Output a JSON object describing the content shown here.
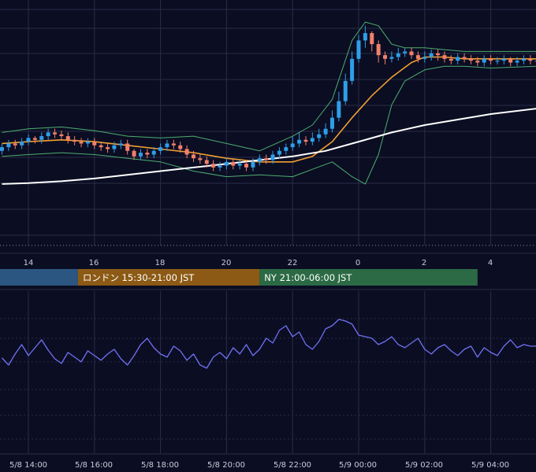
{
  "theme": {
    "background": "#0b0d23",
    "grid": "#2a2d45",
    "candle_up": "#2f9ee8",
    "candle_down": "#f2806a",
    "ma_short": "#f0a030",
    "ma_long": "#ffffff",
    "bollinger": "#4caf6e",
    "oscillator": "#6f72f2"
  },
  "sessions": [
    {
      "label": "",
      "color": "#2b5682",
      "start_hour": 11.2,
      "end_hour": 15.5
    },
    {
      "label": "ロンドン 15:30-21:00 JST",
      "color": "#8c5a14",
      "start_hour": 15.5,
      "end_hour": 21.0
    },
    {
      "label": "NY 21:00-06:00 JST",
      "color": "#2b6a44",
      "start_hour": 21.0,
      "end_hour": 27.6
    }
  ],
  "hour_ticks": [
    "14",
    "16",
    "18",
    "20",
    "22",
    "0",
    "2",
    "4"
  ],
  "date_ticks": [
    "5/8 14:00",
    "5/8 16:00",
    "5/8 18:00",
    "5/8 20:00",
    "5/8 22:00",
    "5/9 00:00",
    "5/9 02:00",
    "5/9 04:00"
  ],
  "chart_data": [
    {
      "type": "candlestick",
      "x_axis": "time (hours, 5/8 → 5/9)",
      "xlim": [
        13.2,
        29.4
      ],
      "ylim": [
        0,
        100
      ],
      "grid": true,
      "series": [
        {
          "kind": "candles",
          "x": [
            13.2,
            13.4,
            13.6,
            13.8,
            14.0,
            14.2,
            14.4,
            14.6,
            14.8,
            15.0,
            15.2,
            15.4,
            15.6,
            15.8,
            16.0,
            16.2,
            16.4,
            16.6,
            16.8,
            17.0,
            17.2,
            17.4,
            17.6,
            17.8,
            18.0,
            18.2,
            18.4,
            18.6,
            18.8,
            19.0,
            19.2,
            19.4,
            19.6,
            19.8,
            20.0,
            20.2,
            20.4,
            20.6,
            20.8,
            21.0,
            21.2,
            21.4,
            21.6,
            21.8,
            22.0,
            22.2,
            22.4,
            22.6,
            22.8,
            23.0,
            23.2,
            23.4,
            23.6,
            23.8,
            24.0,
            24.2,
            24.4,
            24.6,
            24.8,
            25.0,
            25.2,
            25.4,
            25.6,
            25.8,
            26.0,
            26.2,
            26.4,
            26.6,
            26.8,
            27.0,
            27.2,
            27.4,
            27.6,
            27.8,
            28.0,
            28.2,
            28.4,
            28.6,
            28.8,
            29.0,
            29.2,
            29.4
          ],
          "close": [
            32,
            34,
            33,
            35,
            37,
            36,
            38,
            40,
            39,
            38,
            36,
            35,
            34,
            35,
            33,
            32,
            31,
            33,
            34,
            30,
            27,
            29,
            28,
            30,
            32,
            34,
            33,
            31,
            28,
            26,
            25,
            23,
            21,
            22,
            24,
            22,
            23,
            21,
            24,
            26,
            25,
            28,
            30,
            32,
            34,
            36,
            35,
            37,
            39,
            42,
            48,
            57,
            68,
            80,
            90,
            94,
            88,
            82,
            80,
            81,
            83,
            84,
            82,
            80,
            81,
            83,
            82,
            80,
            79,
            81,
            80,
            79,
            78,
            80,
            79,
            79,
            80,
            78,
            79,
            80,
            79,
            79
          ],
          "open": [
            30,
            32,
            34,
            33,
            35,
            37,
            36,
            38,
            40,
            39,
            38,
            36,
            35,
            34,
            35,
            33,
            32,
            31,
            33,
            34,
            30,
            27,
            29,
            28,
            30,
            32,
            34,
            33,
            31,
            28,
            26,
            25,
            23,
            21,
            22,
            24,
            22,
            23,
            21,
            24,
            26,
            25,
            28,
            30,
            32,
            34,
            36,
            35,
            37,
            39,
            42,
            48,
            57,
            68,
            80,
            90,
            94,
            88,
            82,
            80,
            81,
            83,
            84,
            82,
            80,
            81,
            83,
            82,
            80,
            79,
            81,
            80,
            79,
            78,
            80,
            79,
            79,
            80,
            78,
            79,
            80,
            79
          ],
          "high": [
            34,
            36,
            36,
            37,
            39,
            38,
            40,
            42,
            42,
            41,
            40,
            38,
            37,
            37,
            37,
            35,
            34,
            35,
            36,
            36,
            31,
            31,
            31,
            32,
            34,
            36,
            36,
            35,
            33,
            30,
            28,
            27,
            25,
            24,
            26,
            26,
            25,
            25,
            26,
            28,
            28,
            30,
            32,
            34,
            38,
            40,
            38,
            40,
            42,
            45,
            52,
            62,
            72,
            84,
            93,
            98,
            95,
            90,
            84,
            84,
            86,
            86,
            86,
            84,
            84,
            85,
            85,
            84,
            82,
            83,
            83,
            82,
            81,
            82,
            82,
            81,
            82,
            81,
            81,
            82,
            82,
            81
          ],
          "low": [
            28,
            30,
            31,
            31,
            33,
            34,
            34,
            36,
            37,
            36,
            34,
            33,
            32,
            32,
            31,
            30,
            29,
            29,
            31,
            28,
            25,
            25,
            26,
            26,
            28,
            30,
            31,
            29,
            26,
            24,
            23,
            21,
            19,
            19,
            20,
            20,
            20,
            19,
            19,
            22,
            23,
            23,
            26,
            28,
            30,
            32,
            33,
            33,
            35,
            37,
            40,
            46,
            55,
            66,
            78,
            86,
            84,
            78,
            77,
            78,
            79,
            81,
            80,
            78,
            78,
            79,
            79,
            78,
            77,
            77,
            78,
            77,
            76,
            76,
            77,
            77,
            77,
            76,
            76,
            77,
            77,
            77
          ]
        },
        {
          "kind": "line",
          "role": "ma_short",
          "x": [
            13.2,
            14.0,
            15.0,
            16.0,
            17.0,
            18.0,
            19.0,
            20.0,
            21.0,
            22.0,
            22.6,
            23.2,
            23.8,
            24.4,
            25.0,
            25.6,
            26.0,
            26.6,
            27.2,
            28.0,
            29.4
          ],
          "y": [
            34,
            35,
            36,
            35,
            33,
            31,
            29,
            26,
            24,
            24,
            27,
            35,
            48,
            60,
            70,
            78,
            81,
            81,
            80,
            80,
            80
          ]
        },
        {
          "kind": "line",
          "role": "ma_long",
          "x": [
            13.2,
            14.0,
            15.0,
            16.0,
            17.0,
            18.0,
            19.0,
            20.0,
            21.0,
            22.0,
            23.0,
            24.0,
            25.0,
            26.0,
            27.0,
            28.0,
            29.4
          ],
          "y": [
            12,
            12.5,
            13.5,
            15,
            17,
            19,
            21,
            23,
            25,
            27,
            30,
            35,
            40,
            44,
            47,
            50,
            53
          ]
        },
        {
          "kind": "line",
          "role": "bollinger_upper",
          "x": [
            13.2,
            14.0,
            15.0,
            16.0,
            17.0,
            18.0,
            19.0,
            20.0,
            21.0,
            22.0,
            22.6,
            23.2,
            23.8,
            24.2,
            24.6,
            25.0,
            25.4,
            26.0,
            26.6,
            27.2,
            28.0,
            29.4
          ],
          "y": [
            40,
            42,
            43,
            41,
            38,
            37,
            38,
            34,
            30,
            38,
            44,
            58,
            90,
            100,
            98,
            88,
            86,
            86,
            85,
            84,
            84,
            84
          ]
        },
        {
          "kind": "line",
          "role": "bollinger_lower",
          "x": [
            13.2,
            14.0,
            15.0,
            16.0,
            17.0,
            18.0,
            19.0,
            20.0,
            21.0,
            22.0,
            22.6,
            23.2,
            23.8,
            24.2,
            24.6,
            25.0,
            25.4,
            26.0,
            26.6,
            27.2,
            28.0,
            29.4
          ],
          "y": [
            27,
            28,
            29,
            28,
            26,
            24,
            19,
            16,
            17,
            16,
            20,
            24,
            16,
            12,
            28,
            55,
            68,
            74,
            76,
            76,
            75,
            76
          ]
        }
      ]
    },
    {
      "type": "line",
      "role": "oscillator",
      "xlim": [
        13.2,
        29.4
      ],
      "ylim": [
        0,
        100
      ],
      "grid": true,
      "series": [
        {
          "x": [
            13.2,
            13.4,
            13.6,
            13.8,
            14.0,
            14.2,
            14.4,
            14.6,
            14.8,
            15.0,
            15.2,
            15.4,
            15.6,
            15.8,
            16.0,
            16.2,
            16.4,
            16.6,
            16.8,
            17.0,
            17.2,
            17.4,
            17.6,
            17.8,
            18.0,
            18.2,
            18.4,
            18.6,
            18.8,
            19.0,
            19.2,
            19.4,
            19.6,
            19.8,
            20.0,
            20.2,
            20.4,
            20.6,
            20.8,
            21.0,
            21.2,
            21.4,
            21.6,
            21.8,
            22.0,
            22.2,
            22.4,
            22.6,
            22.8,
            23.0,
            23.2,
            23.4,
            23.6,
            23.8,
            24.0,
            24.2,
            24.4,
            24.6,
            24.8,
            25.0,
            25.2,
            25.4,
            25.6,
            25.8,
            26.0,
            26.2,
            26.4,
            26.6,
            26.8,
            27.0,
            27.2,
            27.4,
            27.6,
            27.8,
            28.0,
            28.2,
            28.4,
            28.6,
            28.8,
            29.0,
            29.2,
            29.4
          ],
          "y": [
            45,
            36,
            50,
            62,
            48,
            58,
            68,
            55,
            44,
            38,
            52,
            46,
            40,
            54,
            48,
            42,
            50,
            56,
            44,
            36,
            48,
            62,
            70,
            58,
            50,
            46,
            60,
            54,
            42,
            50,
            36,
            32,
            46,
            52,
            44,
            58,
            50,
            62,
            48,
            56,
            70,
            64,
            80,
            86,
            72,
            78,
            62,
            56,
            66,
            82,
            86,
            94,
            92,
            88,
            74,
            72,
            70,
            62,
            66,
            72,
            62,
            58,
            64,
            70,
            56,
            50,
            58,
            62,
            54,
            48,
            56,
            60,
            46,
            58,
            52,
            48,
            60,
            68,
            58,
            62,
            60,
            60
          ]
        }
      ]
    }
  ]
}
